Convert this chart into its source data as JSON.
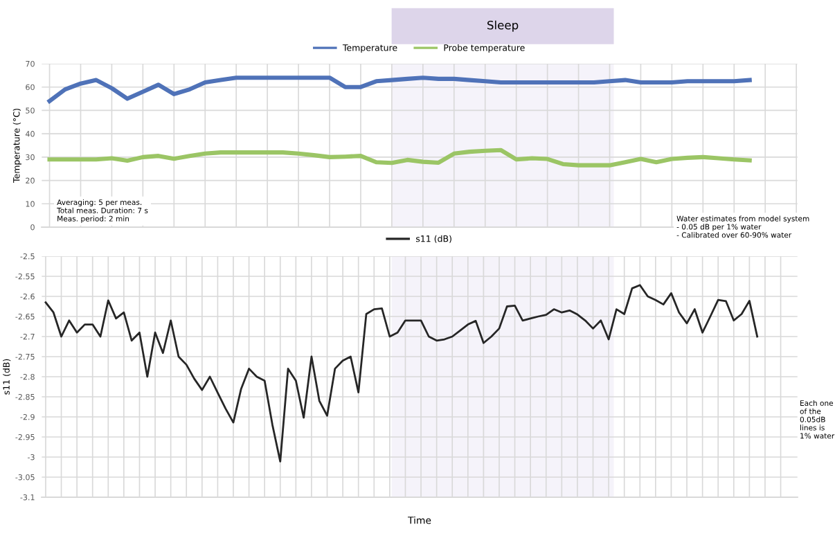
{
  "chart_data": [
    {
      "type": "line",
      "ylabel": "Temperature (°C)",
      "categories": [
        null,
        null,
        null,
        null,
        null,
        null,
        null,
        null,
        null,
        null,
        null,
        null,
        null,
        null,
        null,
        null,
        null,
        null,
        null,
        null,
        null,
        null,
        null,
        null,
        null,
        null,
        null,
        null,
        null,
        null,
        null,
        null,
        null,
        null,
        null,
        null,
        null,
        null,
        null,
        null,
        null,
        null,
        null,
        null,
        null,
        null
      ],
      "ylim": [
        0,
        70
      ],
      "yticks": [
        0,
        10,
        20,
        30,
        40,
        50,
        60,
        70
      ],
      "tick_labels": "y",
      "grid": true,
      "legend": "top",
      "line_style": "solid",
      "annotations": [
        "Sleep",
        "Averaging: 5 per meas.\nTotal meas. Duration: 7 s\nMeas. period: 2 min",
        "Water estimates from model system\n- 0.05 dB per 1% water\n- Calibrated over 60-90% water"
      ],
      "series": [
        {
          "name": "Temperature",
          "color": "#4f72b8",
          "values": [
            54,
            59,
            61.5,
            63,
            59.5,
            55,
            58,
            61,
            57,
            59,
            62,
            63,
            64,
            64,
            64,
            64,
            64,
            64,
            64,
            60,
            60,
            62.5,
            63,
            63.5,
            64,
            63.5,
            63.5,
            63,
            62.5,
            62,
            62,
            62,
            62,
            62,
            62,
            62,
            62.5,
            63,
            62,
            62,
            62,
            62.5,
            62.5,
            62.5,
            62.5,
            63
          ]
        },
        {
          "name": "Probe temperature",
          "color": "#9bc565",
          "values": [
            29,
            29,
            29,
            29,
            29.5,
            28.5,
            30,
            30.5,
            29.3,
            30.5,
            31.5,
            32,
            32,
            32,
            32,
            32,
            31.5,
            30.8,
            30,
            30.2,
            30.5,
            27.8,
            27.5,
            28.8,
            28,
            27.6,
            31.5,
            32.3,
            32.7,
            33,
            29,
            29.5,
            29.2,
            27,
            26.5,
            26.5,
            26.5,
            27.8,
            29.2,
            27.8,
            29.2,
            29.7,
            30,
            29.5,
            29,
            28.6
          ]
        }
      ]
    },
    {
      "type": "line",
      "xlabel": "Time",
      "ylabel": "s11 (dB)",
      "categories": [
        null,
        null,
        null,
        null,
        null,
        null,
        null,
        null,
        null,
        null,
        null,
        null,
        null,
        null,
        null,
        null,
        null,
        null,
        null,
        null,
        null,
        null,
        null,
        null,
        null,
        null,
        null,
        null,
        null,
        null,
        null,
        null,
        null,
        null,
        null,
        null,
        null,
        null,
        null,
        null,
        null,
        null,
        null,
        null,
        null,
        null,
        null,
        null,
        null,
        null,
        null,
        null,
        null,
        null,
        null,
        null,
        null,
        null,
        null,
        null,
        null,
        null,
        null,
        null,
        null,
        null,
        null,
        null,
        null,
        null,
        null,
        null,
        null,
        null,
        null,
        null,
        null,
        null,
        null,
        null,
        null,
        null,
        null,
        null,
        null,
        null,
        null,
        null,
        null,
        null,
        null,
        null
      ],
      "ylim": [
        -3.1,
        -2.5
      ],
      "yticks": [
        {
          "value": -3.1,
          "label": "-3.1"
        },
        {
          "value": -3.05,
          "label": "-3.05"
        },
        {
          "value": -3,
          "label": "-3"
        },
        {
          "value": -2.95,
          "label": "-2.95"
        },
        {
          "value": -2.9,
          "label": "-2.9"
        },
        {
          "value": -2.85,
          "label": "-2.85"
        },
        {
          "value": -2.8,
          "label": "-2.8"
        },
        {
          "value": -2.75,
          "label": "-2.75"
        },
        {
          "value": -2.7,
          "label": "-2.7"
        },
        {
          "value": -2.65,
          "label": "-2.65"
        },
        {
          "value": -2.6,
          "label": "-2.6"
        },
        {
          "value": -2.55,
          "label": "-2.55"
        },
        {
          "value": -2.5,
          "label": "-2.5"
        }
      ],
      "tick_labels": "y",
      "grid": true,
      "legend": "top",
      "line_style": "solid",
      "annotations": [
        "Each one\nof the\n0.05dB\nlines is\n1% water"
      ],
      "series": [
        {
          "name": "s11 (dB)",
          "color": "#262626",
          "values": [
            -2.615,
            -2.64,
            -2.7,
            -2.66,
            -2.69,
            -2.67,
            -2.67,
            -2.7,
            -2.61,
            -2.655,
            -2.64,
            -2.71,
            -2.69,
            -2.8,
            -2.69,
            -2.741,
            -2.66,
            -2.75,
            -2.77,
            -2.805,
            -2.833,
            -2.8,
            -2.84,
            -2.879,
            -2.914,
            -2.83,
            -2.78,
            -2.8,
            -2.81,
            -2.92,
            -3.011,
            -2.78,
            -2.81,
            -2.902,
            -2.75,
            -2.86,
            -2.897,
            -2.78,
            -2.76,
            -2.75,
            -2.839,
            -2.644,
            -2.632,
            -2.63,
            -2.7,
            -2.69,
            -2.66,
            -2.66,
            -2.66,
            -2.7,
            -2.71,
            -2.707,
            -2.7,
            -2.685,
            -2.67,
            -2.661,
            -2.716,
            -2.7,
            -2.68,
            -2.625,
            -2.623,
            -2.66,
            -2.655,
            -2.65,
            -2.646,
            -2.632,
            -2.64,
            -2.635,
            -2.645,
            -2.66,
            -2.68,
            -2.66,
            -2.707,
            -2.632,
            -2.644,
            -2.58,
            -2.572,
            -2.6,
            -2.609,
            -2.62,
            -2.592,
            -2.64,
            -2.667,
            -2.632,
            -2.69,
            -2.65,
            -2.609,
            -2.612,
            -2.66,
            -2.644,
            -2.611,
            -2.7
          ]
        }
      ]
    }
  ]
}
